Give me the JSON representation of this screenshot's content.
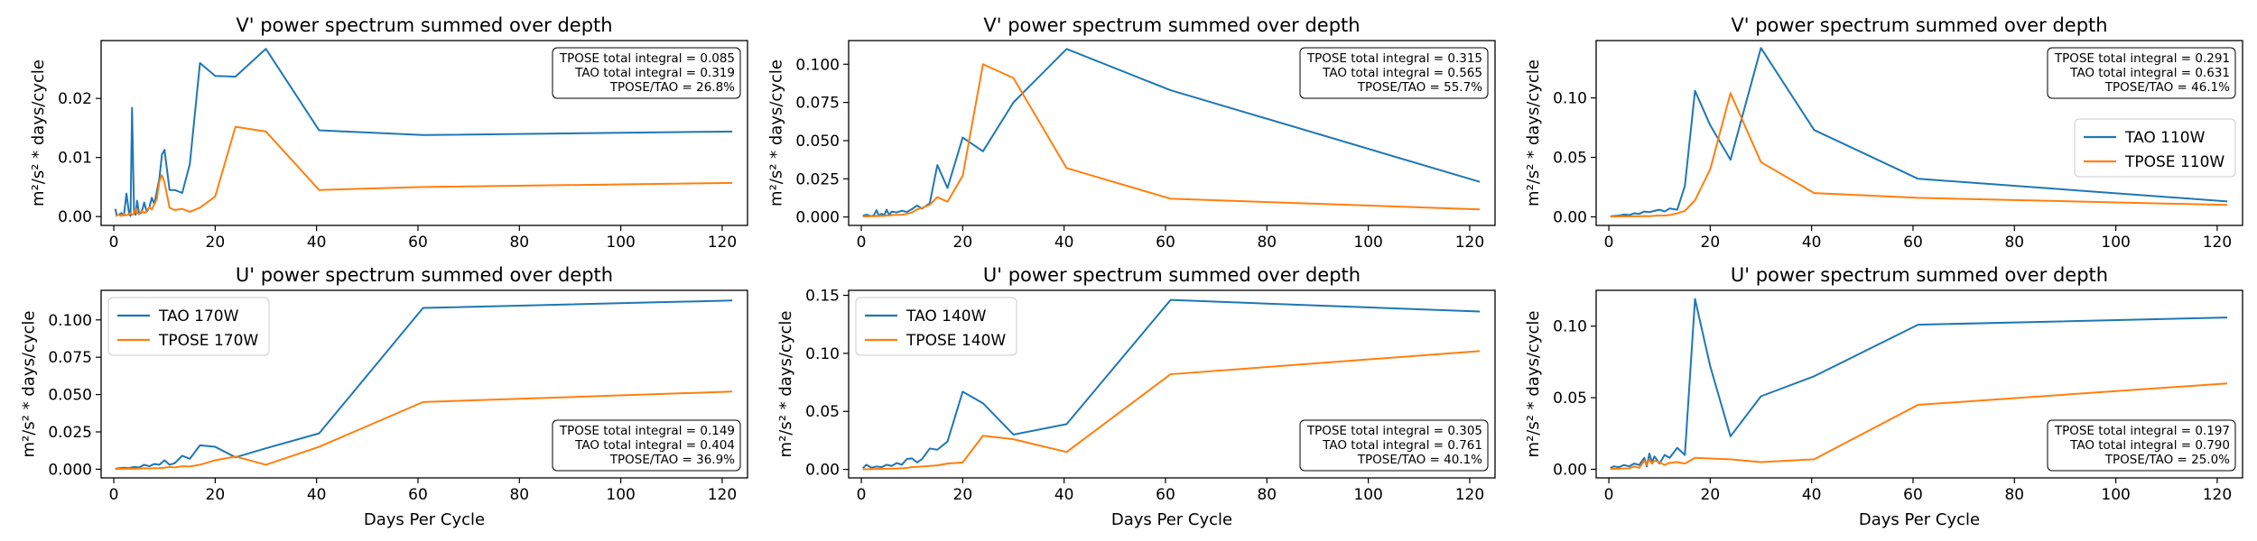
{
  "figure": {
    "colors": {
      "tao": "#1f77b4",
      "tpose": "#ff7f0e",
      "axis": "#000000"
    },
    "common_xlabel": "Days Per Cycle",
    "common_ylabel": "m²/s² * days/cycle"
  },
  "chart_data": [
    {
      "type": "line",
      "title": "V' power spectrum summed over depth",
      "xlabel": "",
      "ylabel": "m²/s² * days/cycle",
      "xlim": [
        -2.5,
        125
      ],
      "ylim": [
        -0.0015,
        0.0298
      ],
      "xticks": [
        0,
        20,
        40,
        60,
        80,
        100,
        120
      ],
      "yticks": [
        0.0,
        0.01,
        0.02
      ],
      "ytick_labels": [
        "0.00",
        "0.01",
        "0.02"
      ],
      "legend": null,
      "annotation": [
        "TPOSE total integral = 0.085",
        "TAO total integral = 0.319",
        "TPOSE/TAO = 26.8%"
      ],
      "annotation_position": "top-right",
      "series": [
        {
          "key": "tao",
          "x": [
            0.3,
            0.6,
            1,
            1.5,
            2,
            2.5,
            3,
            3.3,
            3.6,
            4,
            4.3,
            4.6,
            5,
            5.5,
            6,
            6.5,
            7,
            7.5,
            8,
            8.5,
            9,
            9.5,
            10,
            11,
            12,
            13.5,
            15,
            17,
            20,
            24,
            30,
            40.5,
            61,
            122
          ],
          "y": [
            0.0013,
            0.0002,
            0.0003,
            0.0006,
            0.0002,
            0.0039,
            0.0006,
            0.0001,
            0.0184,
            0.0006,
            0.0003,
            0.0027,
            0.0004,
            0.0007,
            0.0024,
            0.0008,
            0.0015,
            0.0032,
            0.0021,
            0.0043,
            0.0065,
            0.0105,
            0.0113,
            0.0045,
            0.0045,
            0.004,
            0.0089,
            0.026,
            0.0238,
            0.0237,
            0.0284,
            0.0146,
            0.0138,
            0.0144
          ]
        },
        {
          "key": "tpose",
          "x": [
            0.3,
            0.6,
            1,
            1.5,
            2,
            2.5,
            3,
            3.3,
            3.6,
            4,
            4.3,
            4.6,
            5,
            5.5,
            6,
            6.5,
            7,
            7.5,
            8,
            8.5,
            9,
            9.5,
            10,
            11,
            12,
            13.5,
            15,
            17,
            20,
            24,
            30,
            40.5,
            61,
            122
          ],
          "y": [
            0.0001,
            0.0002,
            0.0003,
            0.0001,
            0.0004,
            0.0002,
            0.0004,
            0.0006,
            0.0003,
            0.0005,
            0.0014,
            0.0006,
            0.0004,
            0.001,
            0.0006,
            0.0009,
            0.0016,
            0.0012,
            0.0021,
            0.003,
            0.006,
            0.007,
            0.0058,
            0.0015,
            0.0011,
            0.0013,
            0.0008,
            0.0015,
            0.0034,
            0.0152,
            0.0144,
            0.0045,
            0.005,
            0.0057
          ]
        }
      ]
    },
    {
      "type": "line",
      "title": "V' power spectrum summed over depth",
      "xlabel": "",
      "ylabel": "m²/s² * days/cycle",
      "xlim": [
        -2.5,
        125
      ],
      "ylim": [
        -0.0055,
        0.1155
      ],
      "xticks": [
        0,
        20,
        40,
        60,
        80,
        100,
        120
      ],
      "yticks": [
        0.0,
        0.025,
        0.05,
        0.075,
        0.1
      ],
      "ytick_labels": [
        "0.000",
        "0.025",
        "0.050",
        "0.075",
        "0.100"
      ],
      "legend": null,
      "annotation": [
        "TPOSE total integral = 0.315",
        "TAO total integral = 0.565",
        "TPOSE/TAO = 55.7%"
      ],
      "annotation_position": "top-right",
      "series": [
        {
          "key": "tao",
          "x": [
            0.3,
            1,
            1.5,
            2,
            2.5,
            3,
            3.5,
            4,
            4.5,
            5,
            5.5,
            6,
            7,
            8,
            9,
            10,
            11,
            12,
            13.5,
            15,
            17,
            20,
            24,
            30,
            40.5,
            61,
            122
          ],
          "y": [
            0.0008,
            0.0015,
            0.001,
            0.0006,
            0.0012,
            0.0045,
            0.0008,
            0.0022,
            0.001,
            0.0048,
            0.0012,
            0.0036,
            0.003,
            0.0041,
            0.0033,
            0.0052,
            0.0075,
            0.0055,
            0.009,
            0.034,
            0.019,
            0.052,
            0.043,
            0.075,
            0.11,
            0.083,
            0.023
          ]
        },
        {
          "key": "tpose",
          "x": [
            0.3,
            1,
            1.5,
            2,
            2.5,
            3,
            3.5,
            4,
            4.5,
            5,
            5.5,
            6,
            7,
            8,
            9,
            10,
            11,
            12,
            13.5,
            15,
            17,
            20,
            24,
            30,
            40.5,
            61,
            122
          ],
          "y": [
            0.0003,
            0.0005,
            0.0004,
            0.0006,
            0.0005,
            0.0007,
            0.0006,
            0.0008,
            0.0007,
            0.001,
            0.0009,
            0.0012,
            0.0014,
            0.0015,
            0.002,
            0.003,
            0.005,
            0.006,
            0.008,
            0.013,
            0.01,
            0.027,
            0.1,
            0.091,
            0.032,
            0.012,
            0.005
          ]
        }
      ]
    },
    {
      "type": "line",
      "title": "V' power spectrum summed over depth",
      "xlabel": "",
      "ylabel": "m²/s² * days/cycle",
      "xlim": [
        -2.5,
        125
      ],
      "ylim": [
        -0.0072,
        0.1482
      ],
      "xticks": [
        0,
        20,
        40,
        60,
        80,
        100,
        120
      ],
      "yticks": [
        0.0,
        0.05,
        0.1
      ],
      "ytick_labels": [
        "0.00",
        "0.05",
        "0.10"
      ],
      "legend": {
        "position": "middle-right",
        "entries": [
          {
            "key": "tao",
            "label": "TAO 110W"
          },
          {
            "key": "tpose",
            "label": "TPOSE 110W"
          }
        ]
      },
      "annotation": [
        "TPOSE total integral = 0.291",
        "TAO total integral = 0.631",
        "TPOSE/TAO = 46.1%"
      ],
      "annotation_position": "top-right",
      "series": [
        {
          "key": "tao",
          "x": [
            0.3,
            1,
            2,
            3,
            4,
            5,
            6,
            7,
            8,
            9,
            10,
            11,
            12,
            13.5,
            15,
            17,
            20,
            24,
            30,
            40.5,
            61,
            122
          ],
          "y": [
            0.0005,
            0.0008,
            0.001,
            0.002,
            0.0015,
            0.003,
            0.0025,
            0.0045,
            0.004,
            0.005,
            0.006,
            0.0045,
            0.007,
            0.006,
            0.026,
            0.106,
            0.077,
            0.048,
            0.142,
            0.073,
            0.032,
            0.013
          ]
        },
        {
          "key": "tpose",
          "x": [
            0.3,
            1,
            2,
            3,
            4,
            5,
            6,
            7,
            8,
            9,
            10,
            11,
            12,
            13.5,
            15,
            17,
            20,
            24,
            30,
            40.5,
            61,
            122
          ],
          "y": [
            0.0002,
            0.0003,
            0.0004,
            0.0005,
            0.0004,
            0.0006,
            0.0005,
            0.0007,
            0.0006,
            0.0009,
            0.001,
            0.0011,
            0.0015,
            0.003,
            0.005,
            0.014,
            0.04,
            0.104,
            0.046,
            0.02,
            0.016,
            0.01
          ]
        }
      ]
    },
    {
      "type": "line",
      "title": "U' power spectrum summed over depth",
      "xlabel": "Days Per Cycle",
      "ylabel": "m²/s² * days/cycle",
      "xlim": [
        -2.5,
        125
      ],
      "ylim": [
        -0.0058,
        0.1198
      ],
      "xticks": [
        0,
        20,
        40,
        60,
        80,
        100,
        120
      ],
      "yticks": [
        0.0,
        0.025,
        0.05,
        0.075,
        0.1
      ],
      "ytick_labels": [
        "0.000",
        "0.025",
        "0.050",
        "0.075",
        "0.100"
      ],
      "legend": {
        "position": "top-left",
        "entries": [
          {
            "key": "tao",
            "label": "TAO 170W"
          },
          {
            "key": "tpose",
            "label": "TPOSE 170W"
          }
        ]
      },
      "annotation": [
        "TPOSE total integral = 0.149",
        "TAO total integral = 0.404",
        "TPOSE/TAO = 36.9%"
      ],
      "annotation_position": "bottom-right",
      "series": [
        {
          "key": "tao",
          "x": [
            0.3,
            1,
            2,
            3,
            4,
            5,
            6,
            7,
            8,
            9,
            10,
            11,
            12,
            13.5,
            15,
            17,
            20,
            24,
            30,
            40.5,
            61,
            122
          ],
          "y": [
            0.0004,
            0.0006,
            0.001,
            0.0008,
            0.0015,
            0.0012,
            0.003,
            0.002,
            0.0035,
            0.003,
            0.006,
            0.003,
            0.004,
            0.009,
            0.007,
            0.016,
            0.015,
            0.008,
            0.014,
            0.024,
            0.108,
            0.113
          ]
        },
        {
          "key": "tpose",
          "x": [
            0.3,
            1,
            2,
            3,
            4,
            5,
            6,
            7,
            8,
            9,
            10,
            11,
            12,
            13.5,
            15,
            17,
            20,
            24,
            30,
            40.5,
            61,
            122
          ],
          "y": [
            0.0001,
            0.0002,
            0.0003,
            0.0004,
            0.0003,
            0.0005,
            0.0006,
            0.0005,
            0.0007,
            0.0008,
            0.001,
            0.0015,
            0.0012,
            0.002,
            0.0018,
            0.003,
            0.006,
            0.0085,
            0.003,
            0.015,
            0.045,
            0.052
          ]
        }
      ]
    },
    {
      "type": "line",
      "title": "U' power spectrum summed over depth",
      "xlabel": "Days Per Cycle",
      "ylabel": "m²/s² * days/cycle",
      "xlim": [
        -2.5,
        125
      ],
      "ylim": [
        -0.0073,
        0.1543
      ],
      "xticks": [
        0,
        20,
        40,
        60,
        80,
        100,
        120
      ],
      "yticks": [
        0.0,
        0.05,
        0.1,
        0.15
      ],
      "ytick_labels": [
        "0.00",
        "0.05",
        "0.10",
        "0.15"
      ],
      "legend": {
        "position": "top-left",
        "entries": [
          {
            "key": "tao",
            "label": "TAO 140W"
          },
          {
            "key": "tpose",
            "label": "TPOSE 140W"
          }
        ]
      },
      "annotation": [
        "TPOSE total integral = 0.305",
        "TAO total integral = 0.761",
        "TPOSE/TAO = 40.1%"
      ],
      "annotation_position": "bottom-right",
      "series": [
        {
          "key": "tao",
          "x": [
            0.3,
            1,
            2,
            3,
            4,
            5,
            6,
            7,
            8,
            9,
            10,
            11,
            12,
            13.5,
            15,
            17,
            20,
            24,
            30,
            40.5,
            61,
            122
          ],
          "y": [
            0.001,
            0.004,
            0.0015,
            0.0025,
            0.002,
            0.004,
            0.003,
            0.0055,
            0.004,
            0.009,
            0.0095,
            0.006,
            0.009,
            0.018,
            0.017,
            0.024,
            0.067,
            0.057,
            0.03,
            0.039,
            0.146,
            0.136
          ]
        },
        {
          "key": "tpose",
          "x": [
            0.3,
            1,
            2,
            3,
            4,
            5,
            6,
            7,
            8,
            9,
            10,
            11,
            12,
            13.5,
            15,
            17,
            20,
            24,
            30,
            40.5,
            61,
            122
          ],
          "y": [
            0.0001,
            0.0002,
            0.0003,
            0.0004,
            0.0005,
            0.0006,
            0.0007,
            0.0008,
            0.001,
            0.0012,
            0.002,
            0.0022,
            0.0025,
            0.003,
            0.0035,
            0.005,
            0.006,
            0.029,
            0.026,
            0.015,
            0.082,
            0.102
          ]
        }
      ]
    },
    {
      "type": "line",
      "title": "U' power spectrum summed over depth",
      "xlabel": "Days Per Cycle",
      "ylabel": "m²/s² * days/cycle",
      "xlim": [
        -2.5,
        125
      ],
      "ylim": [
        -0.006,
        0.125
      ],
      "xticks": [
        0,
        20,
        40,
        60,
        80,
        100,
        120
      ],
      "yticks": [
        0.0,
        0.05,
        0.1
      ],
      "ytick_labels": [
        "0.00",
        "0.05",
        "0.10"
      ],
      "legend": null,
      "annotation": [
        "TPOSE total integral = 0.197",
        "TAO total integral = 0.790",
        "TPOSE/TAO = 25.0%"
      ],
      "annotation_position": "bottom-right",
      "series": [
        {
          "key": "tao",
          "x": [
            0.3,
            1,
            2,
            3,
            4,
            5,
            6,
            7,
            7.5,
            8,
            8.5,
            9,
            10,
            11,
            12,
            13.5,
            15,
            17,
            20,
            24,
            30,
            40.5,
            61,
            122
          ],
          "y": [
            0.001,
            0.002,
            0.0015,
            0.003,
            0.002,
            0.004,
            0.003,
            0.008,
            0.002,
            0.011,
            0.005,
            0.009,
            0.004,
            0.01,
            0.008,
            0.015,
            0.01,
            0.119,
            0.072,
            0.023,
            0.051,
            0.065,
            0.101,
            0.106
          ]
        },
        {
          "key": "tpose",
          "x": [
            0.3,
            1,
            2,
            3,
            4,
            5,
            6,
            7,
            7.5,
            8,
            8.5,
            9,
            10,
            11,
            12,
            13.5,
            15,
            17,
            20,
            24,
            30,
            40.5,
            61,
            122
          ],
          "y": [
            0.0002,
            0.0003,
            0.0004,
            0.0005,
            0.0006,
            0.002,
            0.001,
            0.006,
            0.003,
            0.007,
            0.004,
            0.006,
            0.005,
            0.003,
            0.0045,
            0.005,
            0.004,
            0.008,
            0.0075,
            0.007,
            0.005,
            0.007,
            0.045,
            0.06
          ]
        }
      ]
    }
  ]
}
